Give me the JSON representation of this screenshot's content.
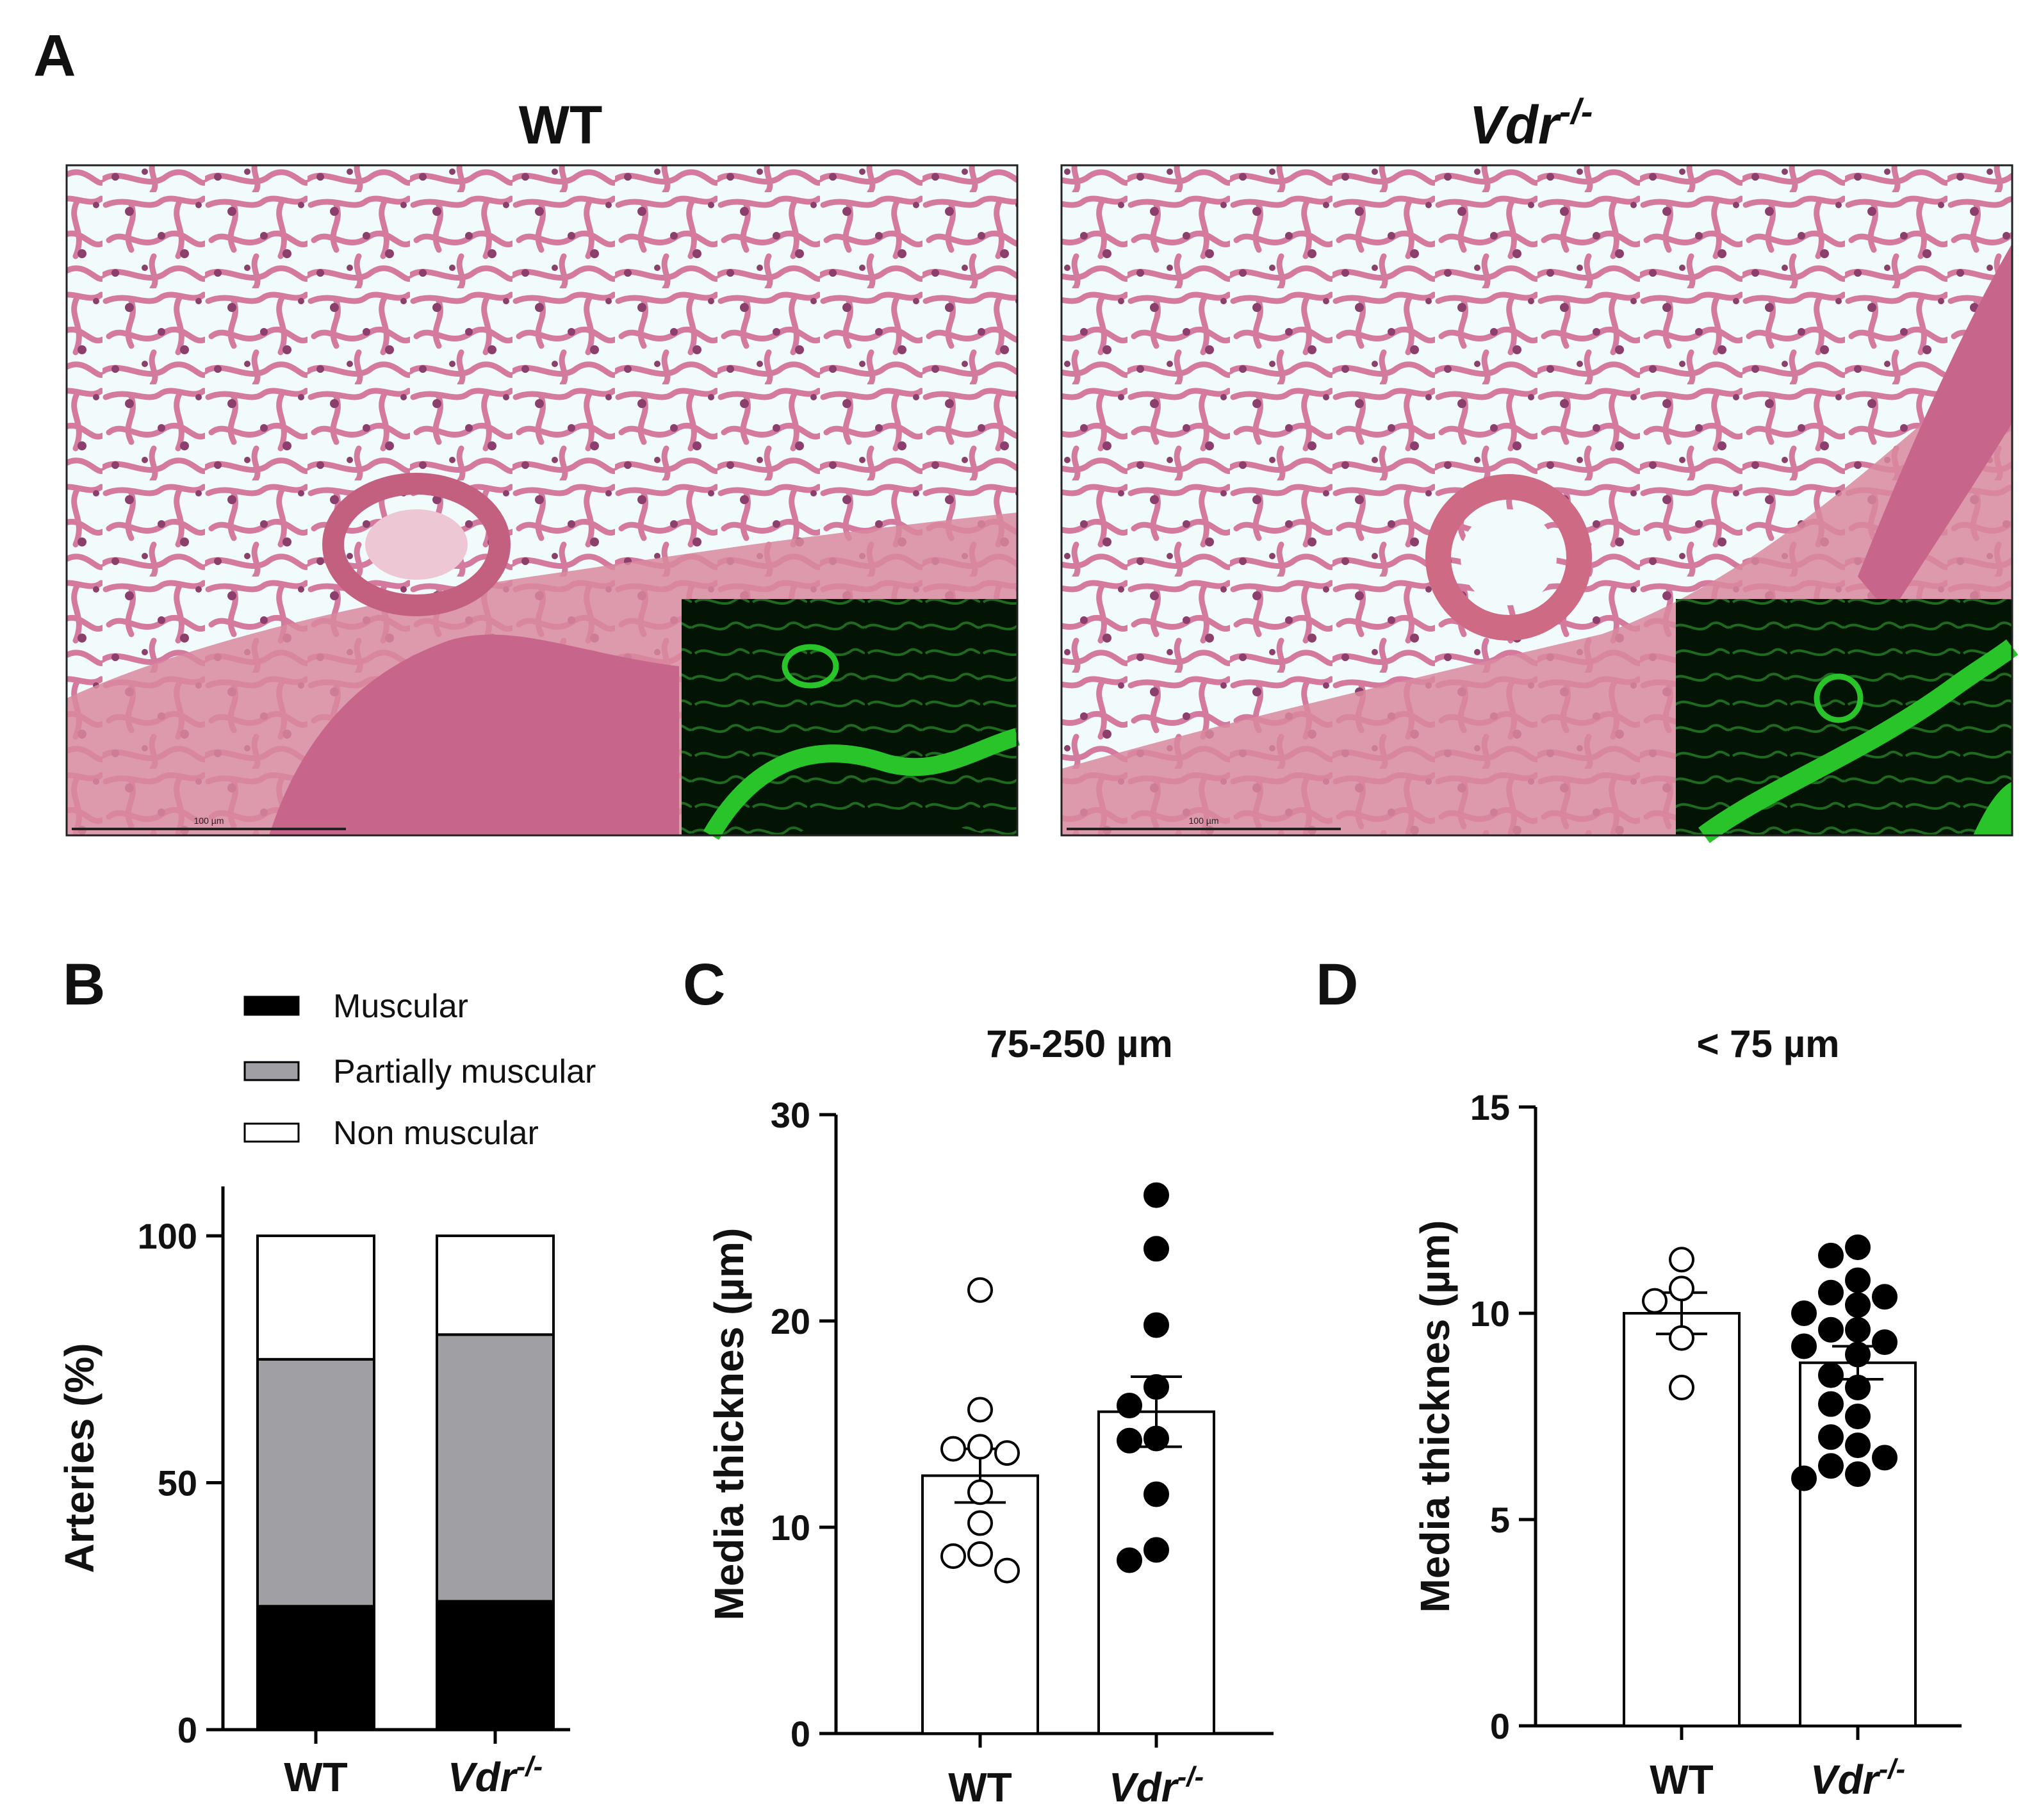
{
  "panel_a": {
    "letter": "A",
    "images": [
      {
        "title": "WT",
        "scale_bar": "100 µm"
      },
      {
        "title_base": "Vdr",
        "title_sup": "-/-",
        "scale_bar": "100 µm"
      }
    ],
    "colors": {
      "he_background": "#f2fbfc",
      "he_tissue": "#d47a9e",
      "he_nuclei": "#8a3f6c",
      "fluor_background": "#041404",
      "fluor_signal": "#29c429"
    }
  },
  "chart_data": [
    {
      "panel": "B",
      "type": "bar",
      "stacked": true,
      "categories": [
        {
          "base": "WT",
          "sup": ""
        },
        {
          "base": "Vdr",
          "sup": "-/-"
        }
      ],
      "series": [
        {
          "name": "Muscular",
          "values": [
            25,
            26
          ],
          "color": "#000000"
        },
        {
          "name": "Partially muscular",
          "values": [
            50,
            54
          ],
          "color": "#a0a0a4"
        },
        {
          "name": "Non muscular",
          "values": [
            25,
            20
          ],
          "color": "#ffffff"
        }
      ],
      "ylabel": "Arteries (%)",
      "ylim": [
        0,
        110
      ],
      "yticks": [
        0,
        50,
        100
      ],
      "legend": "top"
    },
    {
      "panel": "C",
      "type": "bar",
      "subtitle": "75-250 µm",
      "categories": [
        {
          "base": "WT",
          "sup": ""
        },
        {
          "base": "Vdr",
          "sup": "-/-"
        }
      ],
      "values": [
        12.5,
        15.6
      ],
      "sem": [
        1.3,
        1.7
      ],
      "points": [
        [
          21.5,
          15.7,
          13.8,
          13.9,
          13.6,
          11.7,
          10.2,
          8.7,
          8.6,
          7.9
        ],
        [
          26.1,
          23.5,
          19.8,
          16.8,
          15.9,
          14.3,
          14.2,
          11.6,
          8.9,
          8.4
        ]
      ],
      "point_fill": [
        "#ffffff",
        "#000000"
      ],
      "ylabel": "Media thicknes (µm)",
      "ylim": [
        0,
        30
      ],
      "yticks": [
        0,
        10,
        20,
        30
      ]
    },
    {
      "panel": "D",
      "type": "bar",
      "subtitle": "< 75 µm",
      "categories": [
        {
          "base": "WT",
          "sup": ""
        },
        {
          "base": "Vdr",
          "sup": "-/-"
        }
      ],
      "values": [
        10.0,
        8.8
      ],
      "sem": [
        0.5,
        0.4
      ],
      "points": [
        [
          11.3,
          10.6,
          10.3,
          9.4,
          8.2
        ],
        [
          11.6,
          11.4,
          10.8,
          10.5,
          10.4,
          10.2,
          10.0,
          9.6,
          9.6,
          9.3,
          9.2,
          9.0,
          8.5,
          8.2,
          7.8,
          7.5,
          7.0,
          6.8,
          6.5,
          6.3,
          6.1,
          6.0
        ]
      ],
      "point_fill": [
        "#ffffff",
        "#000000"
      ],
      "ylabel": "Media thicknes (µm)",
      "ylim": [
        0,
        15
      ],
      "yticks": [
        0,
        5,
        10,
        15
      ]
    }
  ]
}
